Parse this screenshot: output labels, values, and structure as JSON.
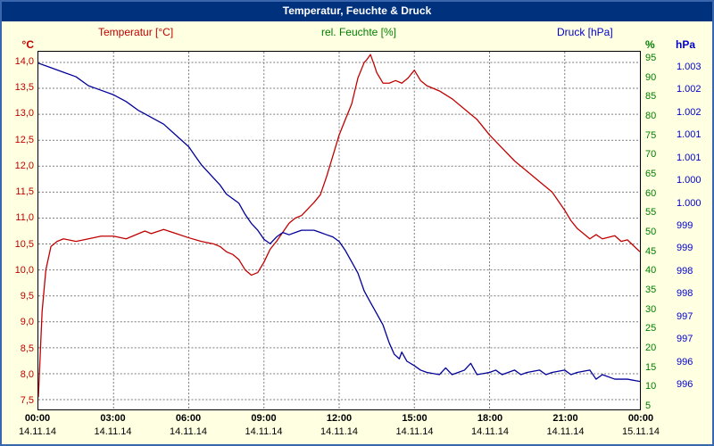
{
  "window": {
    "title": "Temperatur, Feuchte & Druck"
  },
  "chart_data": {
    "type": "line",
    "title": "Temperatur, Feuchte & Druck",
    "x_unit": "hours",
    "x_range_hours": [
      0,
      24
    ],
    "x_axis": {
      "time_labels": [
        "00:00",
        "03:00",
        "06:00",
        "09:00",
        "12:00",
        "15:00",
        "18:00",
        "21:00",
        "00:00"
      ],
      "date_labels": [
        "14.11.14",
        "14.11.14",
        "14.11.14",
        "14.11.14",
        "14.11.14",
        "14.11.14",
        "14.11.14",
        "14.11.14",
        "15.11.14"
      ]
    },
    "axes": {
      "temperature": {
        "label": "Temperatur [°C]",
        "unit": "°C",
        "color": "#c00000",
        "ticks": [
          "14,0",
          "13,5",
          "13,0",
          "12,5",
          "12,0",
          "11,5",
          "11,0",
          "10,5",
          "10,0",
          "9,5",
          "9,0",
          "8,5",
          "8,0",
          "7,5"
        ]
      },
      "humidity": {
        "label": "rel. Feuchte [%]",
        "unit": "%",
        "color": "#008000",
        "ticks": [
          "95",
          "90",
          "85",
          "80",
          "75",
          "70",
          "65",
          "60",
          "55",
          "50",
          "45",
          "40",
          "35",
          "30",
          "25",
          "20",
          "15",
          "10",
          "5"
        ]
      },
      "pressure": {
        "label": "Druck [hPa]",
        "unit": "hPa",
        "color": "#0000cc",
        "ticks": [
          "1.003",
          "1.002",
          "1.002",
          "1.001",
          "1.001",
          "1.000",
          "1.000",
          "999",
          "999",
          "998",
          "998",
          "997",
          "997",
          "996",
          "996"
        ]
      }
    },
    "scales": {
      "temperature": {
        "min": 7.5,
        "max": 14.0
      },
      "pressure": {
        "top": 1003.0,
        "bottom": 996.0
      },
      "humidity": {
        "min": 0,
        "max": 100
      }
    },
    "series": [
      {
        "id": "temperature",
        "name": "Temperatur",
        "axis": "temperature",
        "color": "#c00000",
        "x": [
          0,
          0.15,
          0.3,
          0.5,
          0.75,
          1,
          1.5,
          2,
          2.5,
          3,
          3.5,
          4,
          4.25,
          4.5,
          5,
          5.5,
          6,
          6.5,
          7,
          7.25,
          7.5,
          7.75,
          8,
          8.25,
          8.5,
          8.75,
          9,
          9.25,
          9.5,
          10,
          10.25,
          10.5,
          11,
          11.25,
          11.5,
          11.75,
          12,
          12.25,
          12.5,
          12.75,
          13,
          13.1,
          13.25,
          13.4,
          13.5,
          13.75,
          14,
          14.25,
          14.5,
          14.75,
          15,
          15.25,
          15.5,
          16,
          16.5,
          17,
          17.5,
          18,
          18.5,
          19,
          19.5,
          20,
          20.5,
          21,
          21.25,
          21.5,
          22,
          22.25,
          22.5,
          23,
          23.25,
          23.5,
          24
        ],
        "y": [
          7.55,
          9.2,
          10.0,
          10.45,
          10.55,
          10.6,
          10.55,
          10.6,
          10.65,
          10.65,
          10.6,
          10.7,
          10.75,
          10.7,
          10.78,
          10.7,
          10.62,
          10.55,
          10.5,
          10.45,
          10.35,
          10.3,
          10.2,
          10.0,
          9.9,
          9.95,
          10.15,
          10.4,
          10.55,
          10.9,
          11.0,
          11.05,
          11.3,
          11.45,
          11.8,
          12.2,
          12.6,
          12.9,
          13.2,
          13.7,
          14.0,
          14.05,
          14.15,
          13.95,
          13.8,
          13.6,
          13.6,
          13.65,
          13.6,
          13.7,
          13.85,
          13.65,
          13.55,
          13.45,
          13.3,
          13.1,
          12.9,
          12.6,
          12.35,
          12.1,
          11.9,
          11.7,
          11.5,
          11.15,
          10.95,
          10.8,
          10.6,
          10.68,
          10.6,
          10.66,
          10.55,
          10.58,
          10.35
        ]
      },
      {
        "id": "pressure",
        "name": "Druck",
        "axis": "pressure",
        "color": "#000099",
        "x": [
          0,
          0.5,
          1,
          1.5,
          2,
          2.25,
          2.5,
          3,
          3.5,
          4,
          4.5,
          5,
          5.5,
          6,
          6.25,
          6.5,
          7,
          7.25,
          7.5,
          8,
          8.25,
          8.5,
          8.75,
          9,
          9.25,
          9.5,
          9.75,
          10,
          10.25,
          10.5,
          11,
          11.25,
          11.5,
          11.75,
          12,
          12.25,
          12.5,
          12.75,
          13,
          13.25,
          13.5,
          13.75,
          14,
          14.2,
          14.4,
          14.5,
          14.7,
          15,
          15.25,
          15.5,
          16,
          16.25,
          16.5,
          16.75,
          17,
          17.25,
          17.5,
          18,
          18.25,
          18.5,
          19,
          19.25,
          19.5,
          20,
          20.25,
          20.5,
          21,
          21.25,
          21.5,
          22,
          22.25,
          22.5,
          23,
          23.5,
          24
        ],
        "y": [
          1003.1,
          1003.0,
          1002.9,
          1002.8,
          1002.6,
          1002.55,
          1002.5,
          1002.4,
          1002.25,
          1002.05,
          1001.9,
          1001.75,
          1001.5,
          1001.25,
          1001.05,
          1000.85,
          1000.55,
          1000.4,
          1000.2,
          1000.0,
          999.75,
          999.55,
          999.4,
          999.2,
          999.1,
          999.25,
          999.35,
          999.3,
          999.35,
          999.4,
          999.4,
          999.35,
          999.3,
          999.25,
          999.15,
          998.95,
          998.7,
          998.45,
          998.05,
          997.8,
          997.55,
          997.3,
          996.9,
          996.65,
          996.55,
          996.7,
          996.5,
          996.4,
          996.3,
          996.25,
          996.2,
          996.35,
          996.2,
          996.25,
          996.3,
          996.45,
          996.2,
          996.25,
          996.3,
          996.2,
          996.3,
          996.2,
          996.25,
          996.3,
          996.2,
          996.25,
          996.3,
          996.2,
          996.25,
          996.3,
          996.1,
          996.2,
          996.1,
          996.1,
          996.05
        ]
      }
    ]
  }
}
